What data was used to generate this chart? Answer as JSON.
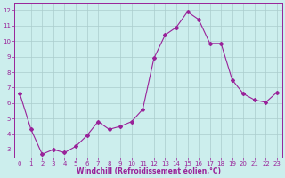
{
  "x": [
    0,
    1,
    2,
    3,
    4,
    5,
    6,
    7,
    8,
    9,
    10,
    11,
    12,
    13,
    14,
    15,
    16,
    17,
    18,
    19,
    20,
    21,
    22,
    23
  ],
  "y": [
    6.6,
    4.3,
    2.7,
    3.0,
    2.8,
    3.2,
    3.9,
    4.8,
    4.3,
    4.5,
    4.8,
    5.6,
    8.9,
    10.4,
    10.9,
    11.9,
    11.4,
    9.85,
    9.85,
    7.5,
    6.6,
    6.2,
    6.05,
    6.7
  ],
  "line_color": "#992299",
  "marker": "D",
  "marker_size": 2.0,
  "bg_color": "#cceeed",
  "grid_color": "#aacccc",
  "spine_color": "#992299",
  "tick_color": "#992299",
  "label_color": "#992299",
  "xlabel": "Windchill (Refroidissement éolien,°C)",
  "ylim": [
    2.5,
    12.5
  ],
  "xlim": [
    -0.5,
    23.5
  ],
  "yticks": [
    3,
    4,
    5,
    6,
    7,
    8,
    9,
    10,
    11,
    12
  ],
  "xticks": [
    0,
    1,
    2,
    3,
    4,
    5,
    6,
    7,
    8,
    9,
    10,
    11,
    12,
    13,
    14,
    15,
    16,
    17,
    18,
    19,
    20,
    21,
    22,
    23
  ],
  "tick_fontsize": 5.0,
  "xlabel_fontsize": 5.5,
  "linewidth": 0.8
}
